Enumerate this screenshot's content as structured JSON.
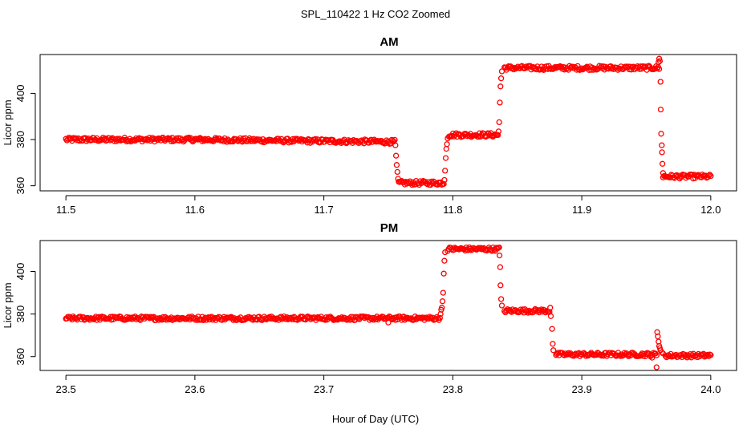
{
  "figure": {
    "title": "SPL_110422  1 Hz CO2 Zoomed",
    "xlabel": "Hour of Day (UTC)",
    "point_color": "#ff0000"
  },
  "chart_data": [
    {
      "type": "scatter",
      "title": "AM",
      "xlabel": "",
      "ylabel": "Licor ppm",
      "xlim": [
        11.48,
        12.02
      ],
      "ylim": [
        357.8,
        416.8
      ],
      "xticks": [
        "11.5",
        "11.6",
        "11.7",
        "11.8",
        "11.9",
        "12.0"
      ],
      "yticks": [
        "360",
        "380",
        "400"
      ],
      "grid": false,
      "marker": "open-circle",
      "segments": [
        {
          "x_start": 11.5,
          "x_end": 11.6,
          "y_start": 380.0,
          "y_end": 380.0
        },
        {
          "x_start": 11.6,
          "x_end": 11.755,
          "y_start": 380.0,
          "y_end": 379.0
        },
        {
          "x_start": 11.758,
          "x_end": 11.793,
          "y_start": 361.2,
          "y_end": 361.2
        },
        {
          "x_start": 11.797,
          "x_end": 11.835,
          "y_start": 382.0,
          "y_end": 382.0
        },
        {
          "x_start": 11.84,
          "x_end": 11.96,
          "y_start": 411.0,
          "y_end": 411.0
        },
        {
          "x_start": 11.963,
          "x_end": 12.0,
          "y_start": 364.0,
          "y_end": 364.0
        }
      ],
      "transitions": [
        {
          "x": 11.7555,
          "y": 377.5
        },
        {
          "x": 11.756,
          "y": 373.0
        },
        {
          "x": 11.7565,
          "y": 369.0
        },
        {
          "x": 11.757,
          "y": 366.0
        },
        {
          "x": 11.7575,
          "y": 363.0
        },
        {
          "x": 11.7935,
          "y": 362.5
        },
        {
          "x": 11.794,
          "y": 366.5
        },
        {
          "x": 11.7945,
          "y": 372.0
        },
        {
          "x": 11.795,
          "y": 376.0
        },
        {
          "x": 11.7955,
          "y": 378.0
        },
        {
          "x": 11.796,
          "y": 380.5
        },
        {
          "x": 11.8355,
          "y": 383.5
        },
        {
          "x": 11.836,
          "y": 387.5
        },
        {
          "x": 11.8365,
          "y": 396.0
        },
        {
          "x": 11.837,
          "y": 403.0
        },
        {
          "x": 11.8375,
          "y": 406.5
        },
        {
          "x": 11.838,
          "y": 409.5
        },
        {
          "x": 11.9595,
          "y": 413.5
        },
        {
          "x": 11.96,
          "y": 415.0
        },
        {
          "x": 11.9605,
          "y": 414.0
        },
        {
          "x": 11.961,
          "y": 405.0
        },
        {
          "x": 11.9612,
          "y": 393.0
        },
        {
          "x": 11.9615,
          "y": 382.5
        },
        {
          "x": 11.962,
          "y": 377.5
        },
        {
          "x": 11.9622,
          "y": 374.5
        },
        {
          "x": 11.9625,
          "y": 369.5
        },
        {
          "x": 11.963,
          "y": 365.5
        }
      ]
    },
    {
      "type": "scatter",
      "title": "PM",
      "xlabel": "",
      "ylabel": "Licor ppm",
      "xlim": [
        23.48,
        24.02
      ],
      "ylim": [
        353.5,
        414.5
      ],
      "xticks": [
        "23.5",
        "23.6",
        "23.7",
        "23.8",
        "23.9",
        "24.0"
      ],
      "yticks": [
        "360",
        "380",
        "400"
      ],
      "grid": false,
      "marker": "open-circle",
      "segments": [
        {
          "x_start": 23.5,
          "x_end": 23.79,
          "y_start": 378.0,
          "y_end": 378.0
        },
        {
          "x_start": 23.796,
          "x_end": 23.836,
          "y_start": 410.5,
          "y_end": 410.5
        },
        {
          "x_start": 23.84,
          "x_end": 23.875,
          "y_start": 381.5,
          "y_end": 381.5
        },
        {
          "x_start": 23.88,
          "x_end": 23.958,
          "y_start": 361.0,
          "y_end": 361.0
        },
        {
          "x_start": 23.965,
          "x_end": 24.0,
          "y_start": 360.5,
          "y_end": 360.5
        }
      ],
      "transitions": [
        {
          "x": 23.7905,
          "y": 380.0
        },
        {
          "x": 23.791,
          "y": 382.0
        },
        {
          "x": 23.7915,
          "y": 383.0
        },
        {
          "x": 23.792,
          "y": 386.0
        },
        {
          "x": 23.7925,
          "y": 390.0
        },
        {
          "x": 23.793,
          "y": 399.0
        },
        {
          "x": 23.7935,
          "y": 405.0
        },
        {
          "x": 23.794,
          "y": 409.0
        },
        {
          "x": 23.8362,
          "y": 407.5
        },
        {
          "x": 23.8367,
          "y": 402.0
        },
        {
          "x": 23.837,
          "y": 393.5
        },
        {
          "x": 23.8375,
          "y": 387.0
        },
        {
          "x": 23.838,
          "y": 384.0
        },
        {
          "x": 23.8755,
          "y": 383.0
        },
        {
          "x": 23.876,
          "y": 379.0
        },
        {
          "x": 23.877,
          "y": 373.0
        },
        {
          "x": 23.8775,
          "y": 366.0
        },
        {
          "x": 23.878,
          "y": 363.0
        },
        {
          "x": 23.9585,
          "y": 371.5
        },
        {
          "x": 23.959,
          "y": 369.5
        },
        {
          "x": 23.9595,
          "y": 367.0
        },
        {
          "x": 23.96,
          "y": 365.0
        },
        {
          "x": 23.9605,
          "y": 364.0
        },
        {
          "x": 23.961,
          "y": 363.0
        },
        {
          "x": 23.962,
          "y": 362.0
        },
        {
          "x": 23.963,
          "y": 361.5
        },
        {
          "x": 23.75,
          "y": 376.0
        },
        {
          "x": 23.958,
          "y": 355.0
        },
        {
          "x": 23.9545,
          "y": 359.5
        }
      ]
    }
  ]
}
